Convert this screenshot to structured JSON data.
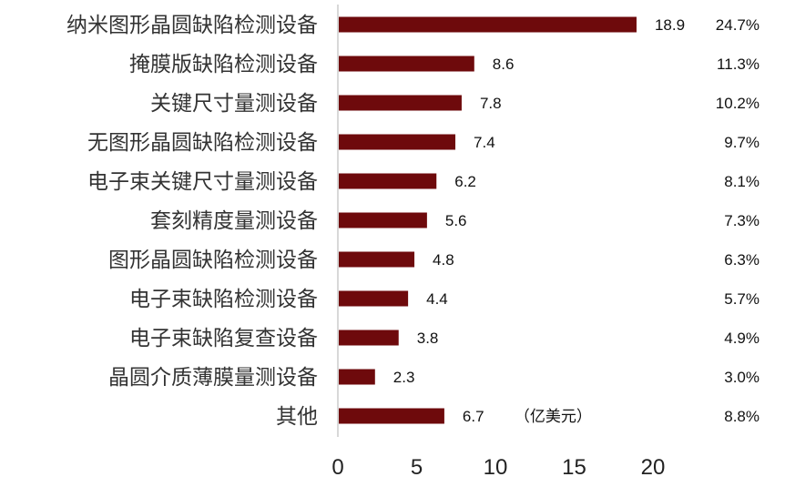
{
  "chart_data": {
    "type": "bar",
    "orientation": "horizontal",
    "categories": [
      "纳米图形晶圆缺陷检测设备",
      "掩膜版缺陷检测设备",
      "关键尺寸量测设备",
      "无图形晶圆缺陷检测设备",
      "电子束关键尺寸量测设备",
      "套刻精度量测设备",
      "图形晶圆缺陷检测设备",
      "电子束缺陷检测设备",
      "电子束缺陷复查设备",
      "晶圆介质薄膜量测设备",
      "其他"
    ],
    "values": [
      18.9,
      8.6,
      7.8,
      7.4,
      6.2,
      5.6,
      4.8,
      4.4,
      3.8,
      2.3,
      6.7
    ],
    "value_labels": [
      "18.9",
      "8.6",
      "7.8",
      "7.4",
      "6.2",
      "5.6",
      "4.8",
      "4.4",
      "3.8",
      "2.3",
      "6.7"
    ],
    "shares": [
      "24.7%",
      "11.3%",
      "10.2%",
      "9.7%",
      "8.1%",
      "7.3%",
      "6.3%",
      "5.7%",
      "4.9%",
      "3.0%",
      "8.8%"
    ],
    "unit_annotation": "（亿美元）",
    "xlim": [
      0,
      20
    ],
    "xticks": [
      "0",
      "5",
      "10",
      "15",
      "20"
    ],
    "grid": false,
    "bar_color": "#6e0a0c",
    "title": "",
    "xlabel": "",
    "ylabel": ""
  }
}
